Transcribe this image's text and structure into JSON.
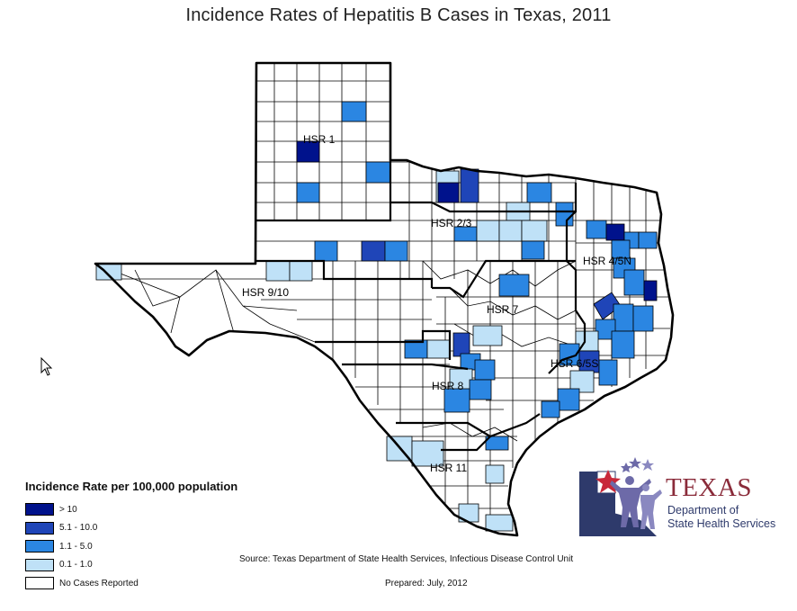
{
  "title": "Incidence Rates of Hepatitis B Cases in Texas, 2011",
  "regions": [
    {
      "id": "hsr1",
      "label": "HSR 1"
    },
    {
      "id": "hsr23",
      "label": "HSR 2/3"
    },
    {
      "id": "hsr45n",
      "label": "HSR 4/5N"
    },
    {
      "id": "hsr910",
      "label": "HSR 9/10"
    },
    {
      "id": "hsr7",
      "label": "HSR 7"
    },
    {
      "id": "hsr65s",
      "label": "HSR 6/5S"
    },
    {
      "id": "hsr8",
      "label": "HSR 8"
    },
    {
      "id": "hsr11",
      "label": "HSR 11"
    }
  ],
  "legend": {
    "title": "Incidence Rate per 100,000 population",
    "items": [
      {
        "label": "> 10",
        "color": "#00128c"
      },
      {
        "label": "5.1 - 10.0",
        "color": "#1f45b8"
      },
      {
        "label": "1.1 - 5.0",
        "color": "#2b86e2"
      },
      {
        "label": "0.1 - 1.0",
        "color": "#bfe1f7"
      },
      {
        "label": "No Cases Reported",
        "color": "#ffffff"
      }
    ]
  },
  "source": "Source: Texas Department of State Health Services, Infectious Disease Control Unit",
  "prepared": "Prepared: July, 2012",
  "logo": {
    "name": "TEXAS",
    "line1": "Department of",
    "line2": "State Health Services",
    "icon": "dshs-logo-people-stars"
  }
}
